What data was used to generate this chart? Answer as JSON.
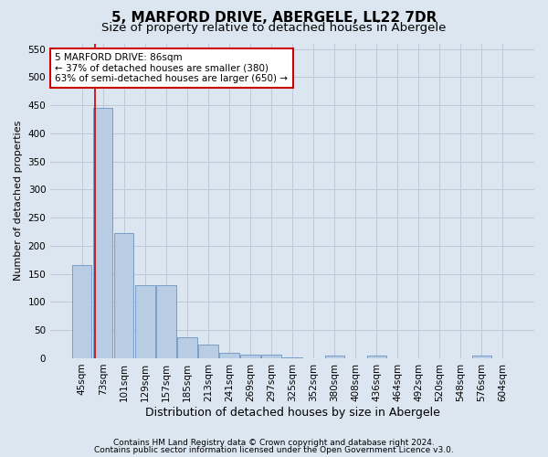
{
  "title": "5, MARFORD DRIVE, ABERGELE, LL22 7DR",
  "subtitle": "Size of property relative to detached houses in Abergele",
  "xlabel": "Distribution of detached houses by size in Abergele",
  "ylabel": "Number of detached properties",
  "bar_labels": [
    "45sqm",
    "73sqm",
    "101sqm",
    "129sqm",
    "157sqm",
    "185sqm",
    "213sqm",
    "241sqm",
    "269sqm",
    "297sqm",
    "325sqm",
    "352sqm",
    "380sqm",
    "408sqm",
    "436sqm",
    "464sqm",
    "492sqm",
    "520sqm",
    "548sqm",
    "576sqm",
    "604sqm"
  ],
  "bar_values": [
    165,
    445,
    222,
    130,
    130,
    37,
    25,
    10,
    6,
    6,
    1,
    0,
    5,
    0,
    5,
    0,
    0,
    0,
    0,
    5,
    0
  ],
  "bar_color": "#b8cce4",
  "bar_edge_color": "#5a87b8",
  "grid_color": "#c0c8d8",
  "bg_color": "#dce6f0",
  "vline_x": 0.62,
  "vline_color": "#cc0000",
  "annotation_text": "5 MARFORD DRIVE: 86sqm\n← 37% of detached houses are smaller (380)\n63% of semi-detached houses are larger (650) →",
  "annotation_box_color": "#ffffff",
  "annotation_border_color": "#cc0000",
  "ylim": [
    0,
    560
  ],
  "yticks": [
    0,
    50,
    100,
    150,
    200,
    250,
    300,
    350,
    400,
    450,
    500,
    550
  ],
  "footer_line1": "Contains HM Land Registry data © Crown copyright and database right 2024.",
  "footer_line2": "Contains public sector information licensed under the Open Government Licence v3.0.",
  "title_fontsize": 11,
  "subtitle_fontsize": 9.5,
  "xlabel_fontsize": 9,
  "ylabel_fontsize": 8,
  "tick_fontsize": 7.5,
  "footer_fontsize": 6.5,
  "annot_fontsize": 7.5
}
